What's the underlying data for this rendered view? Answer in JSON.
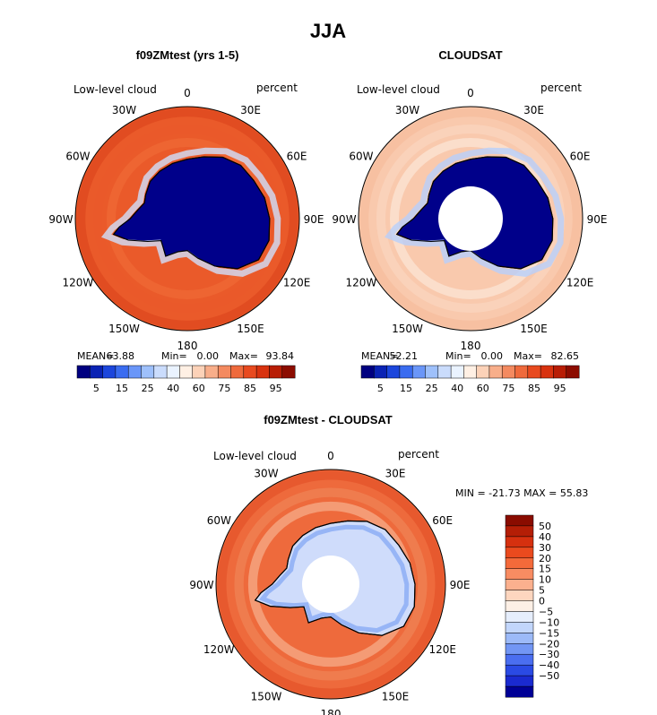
{
  "chart_data": [
    {
      "type": "heatmap",
      "projection": "south-polar-stereographic",
      "title": "f09ZMtest (yrs 1-5)",
      "left_label": "Low-level cloud",
      "right_label": "percent",
      "mean_label": "MEAN=",
      "mean": "63.88",
      "min_label": "Min=",
      "min": "0.00",
      "max_label": "Max=",
      "max": "93.84",
      "colorbar_ticks": [
        "5",
        "15",
        "25",
        "40",
        "60",
        "75",
        "85",
        "95"
      ],
      "colorbar_colors": [
        "#000080",
        "#0a23b4",
        "#1c46dc",
        "#3a6cf0",
        "#6a96f8",
        "#9ec0fb",
        "#cadcfc",
        "#eaf3ff",
        "#fff0e4",
        "#fcd2b8",
        "#f8ae8a",
        "#f48a60",
        "#ef6a3c",
        "#e84a1f",
        "#d8320f",
        "#b81d05",
        "#8c0c00"
      ],
      "land_color": "#00008a",
      "ocean_color": "#ea5a2a",
      "hole": false
    },
    {
      "type": "heatmap",
      "projection": "south-polar-stereographic",
      "title": "CLOUDSAT",
      "left_label": "Low-level cloud",
      "right_label": "percent",
      "mean_label": "MEAN=",
      "mean": "52.21",
      "min_label": "Min=",
      "min": "0.00",
      "max_label": "Max=",
      "max": "82.65",
      "colorbar_ticks": [
        "5",
        "15",
        "25",
        "40",
        "60",
        "75",
        "85",
        "95"
      ],
      "colorbar_colors": [
        "#000080",
        "#0a23b4",
        "#1c46dc",
        "#3a6cf0",
        "#6a96f8",
        "#9ec0fb",
        "#cadcfc",
        "#eaf3ff",
        "#fff0e4",
        "#fcd2b8",
        "#f8ae8a",
        "#f48a60",
        "#ef6a3c",
        "#e84a1f",
        "#d8320f",
        "#b81d05",
        "#8c0c00"
      ],
      "land_color": "#00008a",
      "ocean_color": "#f9c9ad",
      "hole": true
    },
    {
      "type": "heatmap",
      "projection": "south-polar-stereographic",
      "title": "f09ZMtest - CLOUDSAT",
      "left_label": "Low-level cloud",
      "right_label": "percent",
      "range_text": "MIN = -21.73 MAX =  55.83",
      "colorbar_ticks": [
        "50",
        "40",
        "30",
        "20",
        "15",
        "10",
        "5",
        "0",
        "−5",
        "−10",
        "−15",
        "−20",
        "−30",
        "−40",
        "−50"
      ],
      "colorbar_colors": [
        "#8a0c00",
        "#b41e06",
        "#d6300f",
        "#ea4a1e",
        "#f46a3a",
        "#f88c62",
        "#fbb08e",
        "#fdd6bf",
        "#fdf0e6",
        "#e6eefc",
        "#c2d6fb",
        "#9cbaf8",
        "#7296f4",
        "#4a6ef0",
        "#2a4ae4",
        "#1a2ad0",
        "#000096"
      ],
      "land_color": "#cfdcfb",
      "ocean_color": "#ee6a3c",
      "hole": true
    }
  ],
  "figure_title": "JJA",
  "longitude_labels": [
    "0",
    "30E",
    "60E",
    "90E",
    "120E",
    "150E",
    "180",
    "150W",
    "120W",
    "90W",
    "60W",
    "30W"
  ]
}
